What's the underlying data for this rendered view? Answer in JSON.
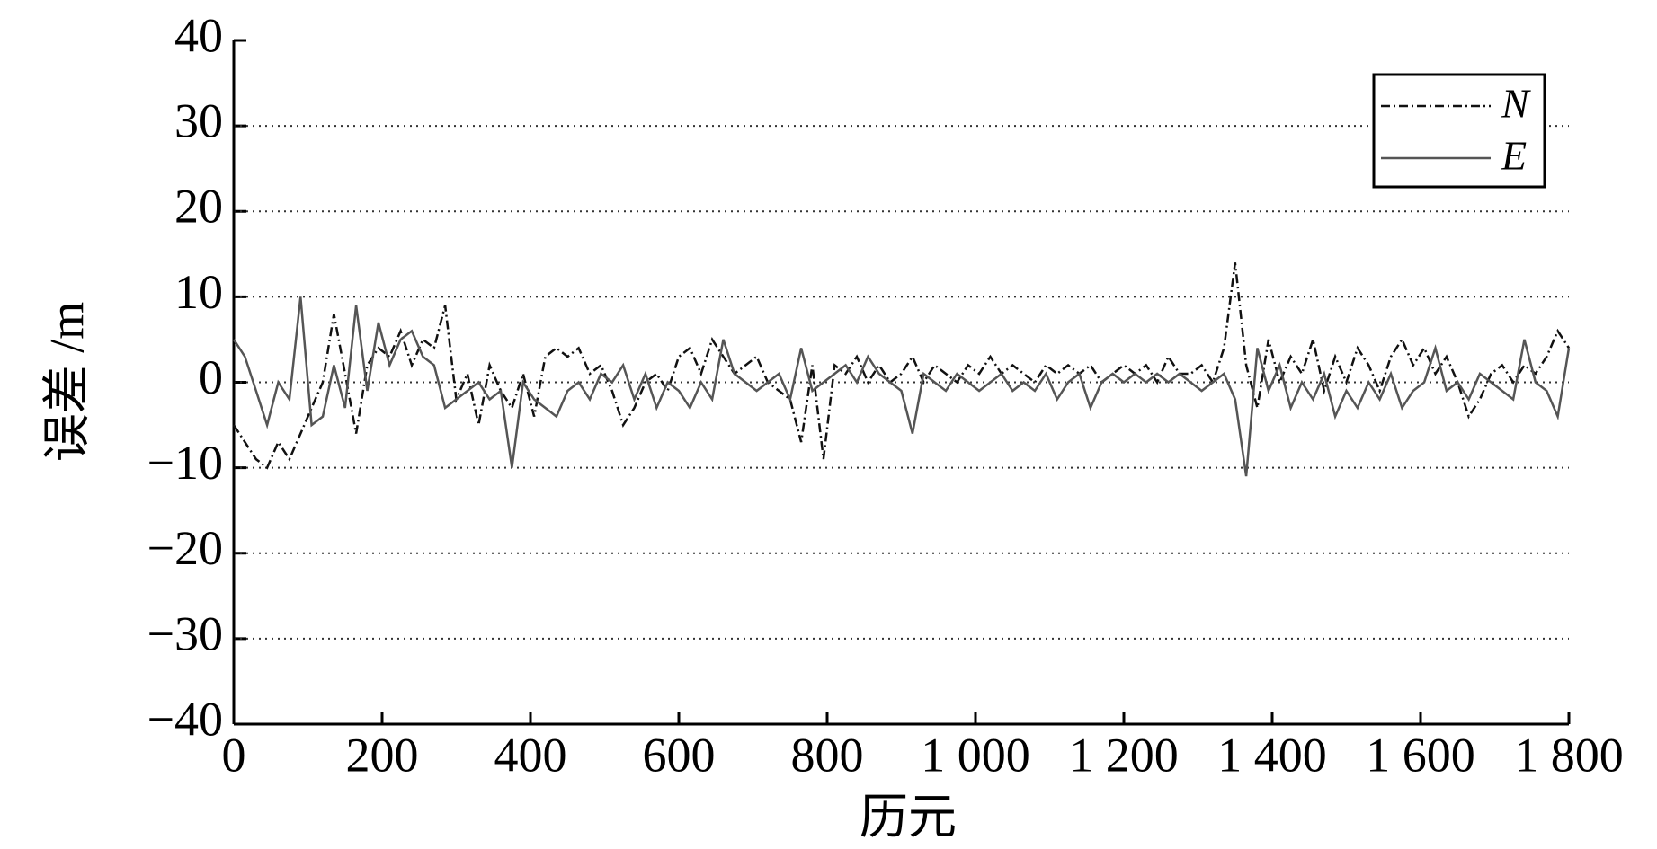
{
  "chart_data": {
    "type": "line",
    "xlabel": "历元",
    "ylabel": "误差 /m",
    "x": [
      0,
      15,
      30,
      45,
      60,
      75,
      90,
      105,
      120,
      135,
      150,
      165,
      180,
      195,
      210,
      225,
      240,
      255,
      270,
      285,
      300,
      315,
      330,
      345,
      360,
      375,
      390,
      405,
      420,
      435,
      450,
      465,
      480,
      495,
      510,
      525,
      540,
      555,
      570,
      585,
      600,
      615,
      630,
      645,
      660,
      675,
      690,
      705,
      720,
      735,
      750,
      765,
      780,
      795,
      810,
      825,
      840,
      855,
      870,
      885,
      900,
      915,
      930,
      945,
      960,
      975,
      990,
      1005,
      1020,
      1035,
      1050,
      1065,
      1080,
      1095,
      1110,
      1125,
      1140,
      1155,
      1170,
      1185,
      1200,
      1215,
      1230,
      1245,
      1260,
      1275,
      1290,
      1305,
      1320,
      1335,
      1350,
      1365,
      1380,
      1395,
      1410,
      1425,
      1440,
      1455,
      1470,
      1485,
      1500,
      1515,
      1530,
      1545,
      1560,
      1575,
      1590,
      1605,
      1620,
      1635,
      1650,
      1665,
      1680,
      1695,
      1710,
      1725,
      1740,
      1755,
      1770,
      1785,
      1800
    ],
    "series": [
      {
        "name": "N",
        "color": "#111111",
        "dash": "10 4 2 4",
        "values": [
          -5,
          -7,
          -9,
          -10,
          -7,
          -9,
          -6,
          -3,
          0,
          8,
          1,
          -6,
          2,
          4,
          3,
          6,
          2,
          5,
          4,
          9,
          -2,
          1,
          -5,
          2,
          -1,
          -3,
          1,
          -4,
          3,
          4,
          3,
          4,
          1,
          2,
          -1,
          -5,
          -3,
          0,
          1,
          -1,
          3,
          4,
          1,
          5,
          3,
          1,
          2,
          3,
          0,
          -1,
          -2,
          -7,
          2,
          -9,
          2,
          1,
          3,
          0,
          2,
          0,
          1,
          3,
          0,
          2,
          1,
          0,
          2,
          1,
          3,
          1,
          2,
          1,
          0,
          2,
          1,
          2,
          1,
          2,
          0,
          1,
          2,
          1,
          2,
          0,
          3,
          1,
          1,
          2,
          0,
          4,
          14,
          2,
          -3,
          5,
          0,
          3,
          1,
          5,
          -1,
          3,
          0,
          4,
          2,
          -1,
          3,
          5,
          2,
          4,
          1,
          3,
          0,
          -4,
          -2,
          1,
          2,
          0,
          2,
          1,
          3,
          6,
          4
        ]
      },
      {
        "name": "E",
        "color": "#555555",
        "dash": "",
        "values": [
          5,
          3,
          -1,
          -5,
          0,
          -2,
          10,
          -5,
          -4,
          2,
          -3,
          9,
          -1,
          7,
          2,
          5,
          6,
          3,
          2,
          -3,
          -2,
          -1,
          0,
          -2,
          -1,
          -10,
          0,
          -2,
          -3,
          -4,
          -1,
          0,
          -2,
          1,
          0,
          2,
          -2,
          1,
          -3,
          0,
          -1,
          -3,
          0,
          -2,
          5,
          1,
          0,
          -1,
          0,
          1,
          -2,
          4,
          -1,
          0,
          1,
          2,
          0,
          3,
          1,
          0,
          -1,
          -6,
          1,
          0,
          -1,
          1,
          0,
          -1,
          0,
          1,
          -1,
          0,
          -1,
          1,
          -2,
          0,
          1,
          -3,
          0,
          1,
          0,
          1,
          0,
          1,
          0,
          1,
          0,
          -1,
          0,
          1,
          -2,
          -11,
          4,
          -1,
          2,
          -3,
          0,
          -2,
          1,
          -4,
          -1,
          -3,
          0,
          -2,
          1,
          -3,
          -1,
          0,
          4,
          -1,
          0,
          -2,
          1,
          0,
          -1,
          -2,
          5,
          0,
          -1,
          -4,
          4
        ]
      }
    ],
    "xlim": [
      0,
      1800
    ],
    "xticks": [
      0,
      200,
      400,
      600,
      800,
      {
        "value": 1000,
        "label": "1 000"
      },
      {
        "value": 1200,
        "label": "1 200"
      },
      {
        "value": 1400,
        "label": "1 400"
      },
      {
        "value": 1600,
        "label": "1 600"
      },
      {
        "value": 1800,
        "label": "1 800"
      }
    ],
    "ylim": [
      -40,
      40
    ],
    "yticks": [
      {
        "value": -40,
        "label": "−40"
      },
      {
        "value": -30,
        "label": "−30"
      },
      {
        "value": -20,
        "label": "−20"
      },
      {
        "value": -10,
        "label": "−10"
      },
      0,
      10,
      20,
      30,
      40
    ],
    "grid": true,
    "legend": "upper right"
  }
}
